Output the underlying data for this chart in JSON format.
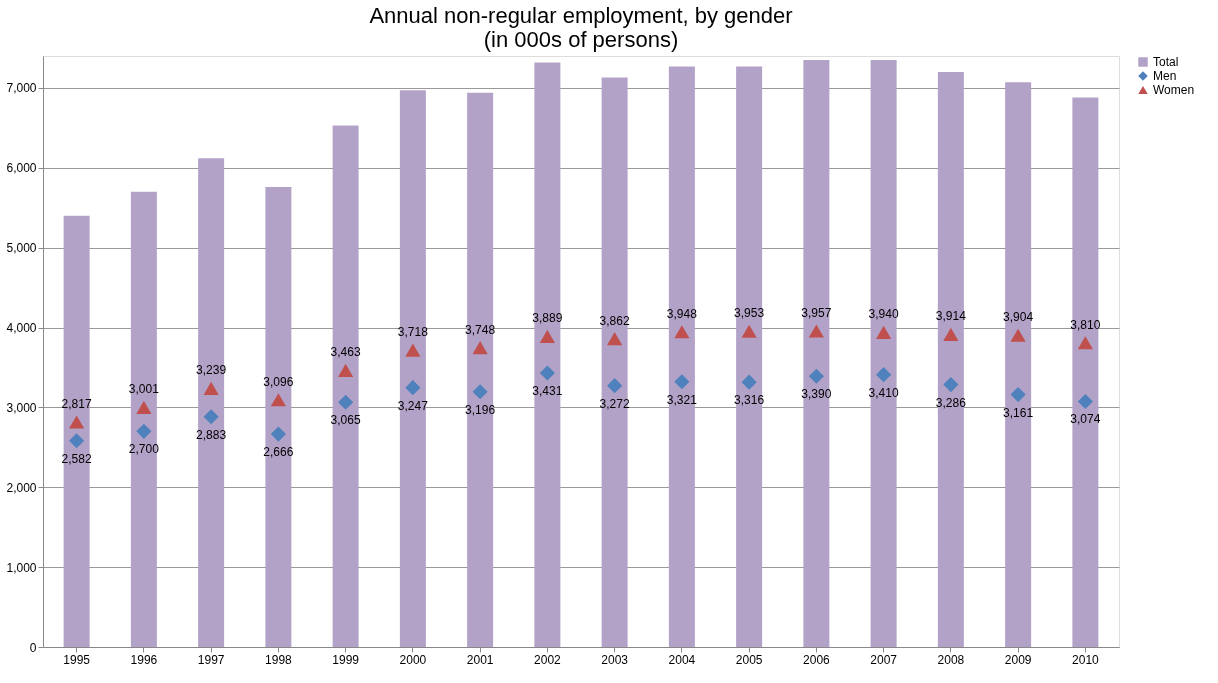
{
  "chart_data": {
    "type": "bar",
    "title": "Annual non-regular employment, by gender\n(in 000s of persons)",
    "categories": [
      "1995",
      "1996",
      "1997",
      "1998",
      "1999",
      "2000",
      "2001",
      "2002",
      "2003",
      "2004",
      "2005",
      "2006",
      "2007",
      "2008",
      "2009",
      "2010"
    ],
    "series": [
      {
        "name": "Total",
        "color": "#b3a2c7",
        "values": [
          5400,
          5700,
          6120,
          5760,
          6530,
          6970,
          6940,
          7320,
          7130,
          7270,
          7270,
          7350,
          7350,
          7200,
          7070,
          6880
        ]
      },
      {
        "name": "Men",
        "type": "scatter",
        "marker": "diamond",
        "color": "#4f81bd",
        "values": [
          2582,
          2700,
          2883,
          2666,
          3065,
          3247,
          3196,
          3431,
          3272,
          3321,
          3316,
          3390,
          3410,
          3286,
          3161,
          3074
        ],
        "value_labels": [
          "2,582",
          "2,700",
          "2,883",
          "2,666",
          "3,065",
          "3,247",
          "3,196",
          "3,431",
          "3,272",
          "3,321",
          "3,316",
          "3,390",
          "3,410",
          "3,286",
          "3,161",
          "3,074"
        ]
      },
      {
        "name": "Women",
        "type": "scatter",
        "marker": "triangle",
        "color": "#c0504d",
        "values": [
          2817,
          3001,
          3239,
          3096,
          3463,
          3718,
          3748,
          3889,
          3862,
          3948,
          3953,
          3957,
          3940,
          3914,
          3904,
          3810
        ],
        "value_labels": [
          "2,817",
          "3,001",
          "3,239",
          "3,096",
          "3,463",
          "3,718",
          "3,748",
          "3,889",
          "3,862",
          "3,948",
          "3,953",
          "3,957",
          "3,940",
          "3,914",
          "3,904",
          "3,810"
        ]
      }
    ],
    "ylim": [
      0,
      7400
    ],
    "yticks": [
      {
        "value": 0,
        "label": "0"
      },
      {
        "value": 1000,
        "label": "1,000"
      },
      {
        "value": 2000,
        "label": "2,000"
      },
      {
        "value": 3000,
        "label": "3,000"
      },
      {
        "value": 4000,
        "label": "4,000"
      },
      {
        "value": 5000,
        "label": "5,000"
      },
      {
        "value": 6000,
        "label": "6,000"
      },
      {
        "value": 7000,
        "label": "7,000"
      }
    ],
    "grid": "y",
    "legend": "right"
  }
}
